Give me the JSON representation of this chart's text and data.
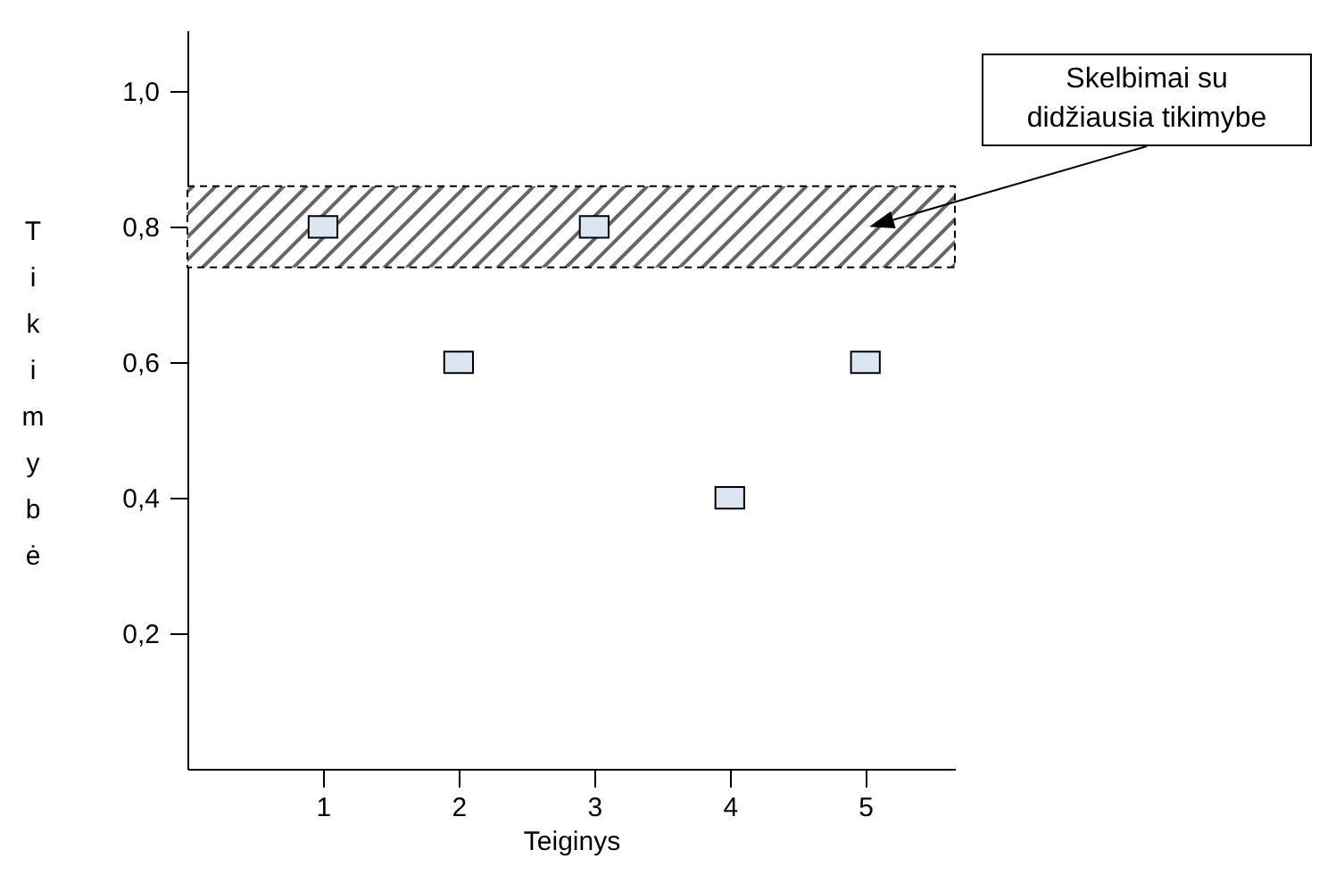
{
  "chart_data": {
    "type": "scatter",
    "xlabel": "Teiginys",
    "ylabel": "Tikimybė",
    "x": [
      1,
      2,
      3,
      4,
      5
    ],
    "values": [
      0.8,
      0.6,
      0.8,
      0.4,
      0.6
    ],
    "color": "#dce6f2",
    "marker": "square",
    "xlim": [
      0,
      5.66
    ],
    "ylim": [
      0,
      1.09
    ],
    "xticks": [
      1,
      2,
      3,
      4,
      5
    ],
    "yticks": [
      {
        "value": 0.2,
        "label": "0,2"
      },
      {
        "value": 0.4,
        "label": "0,4"
      },
      {
        "value": 0.6,
        "label": "0,6"
      },
      {
        "value": 0.8,
        "label": "0,8"
      },
      {
        "value": 1.0,
        "label": "1,0"
      }
    ],
    "bands": [
      {
        "axis": "y",
        "from": 0.74,
        "to": 0.86,
        "label": "Skelbimai su didžiausia tikimybe"
      }
    ],
    "grid": false
  }
}
